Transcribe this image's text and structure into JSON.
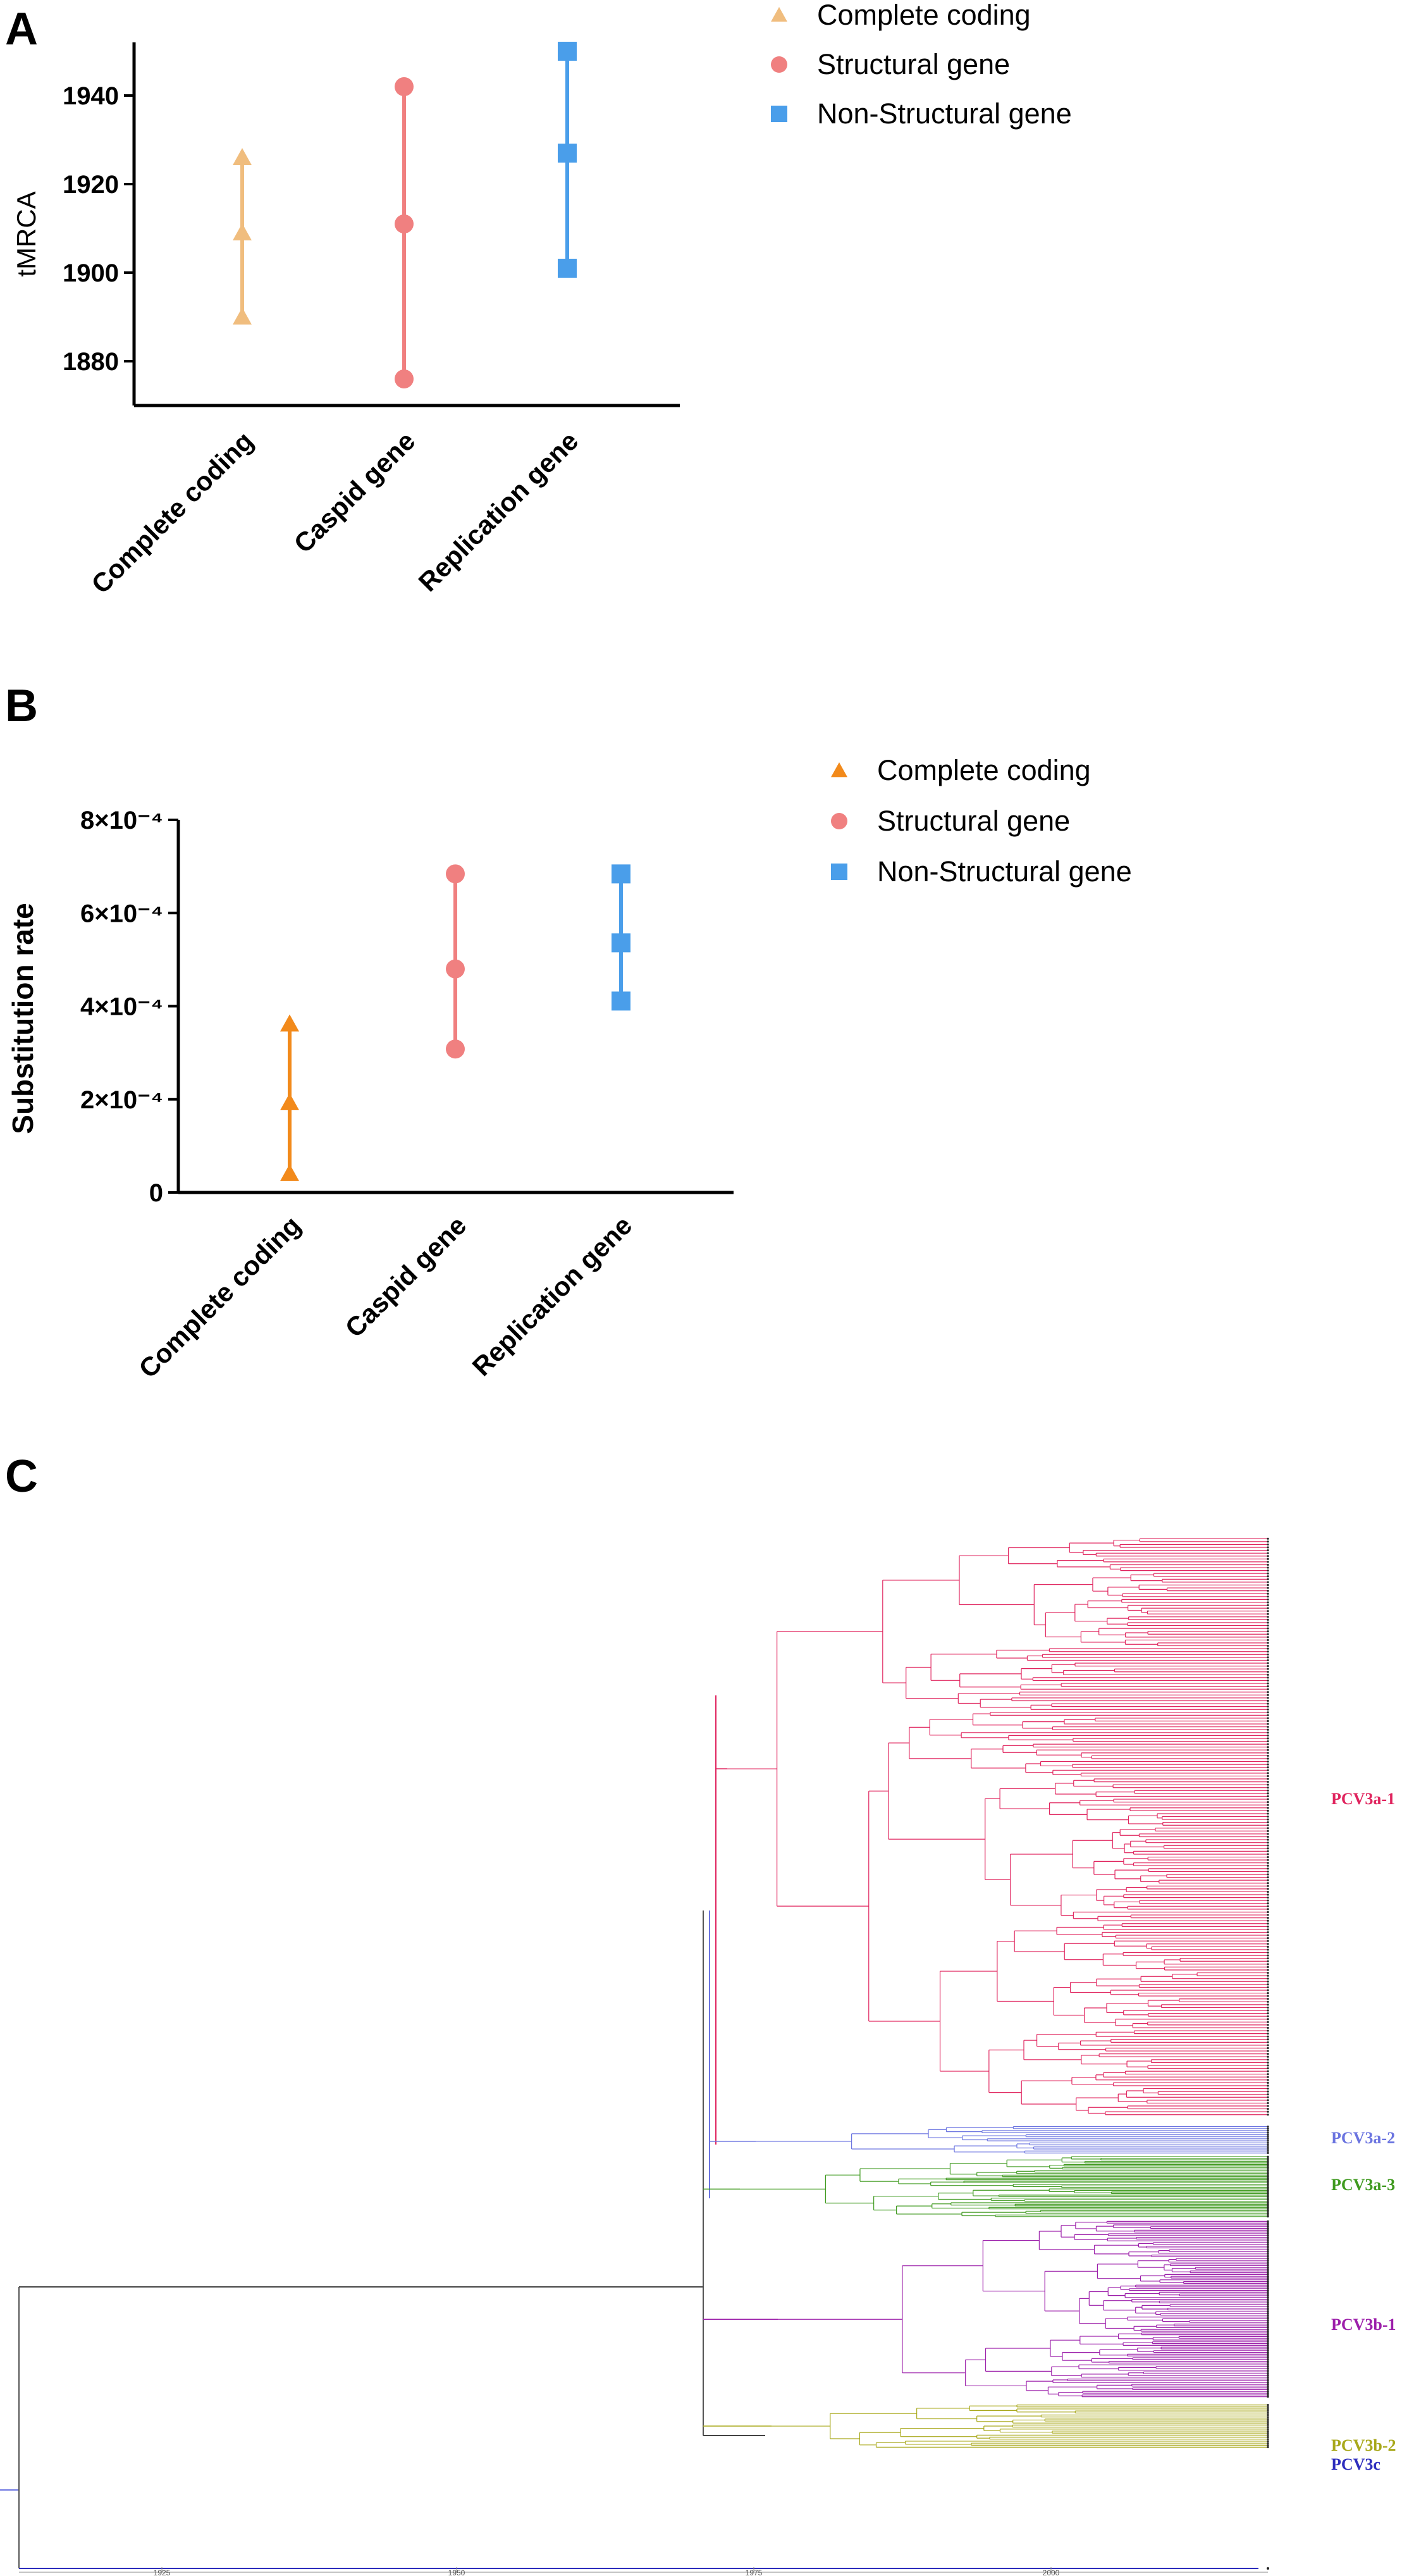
{
  "chart_data": [
    {
      "panel": "A",
      "type": "scatter",
      "ylabel": "tMRCA",
      "ylim": [
        1870,
        1952
      ],
      "yticks": [
        1880,
        1900,
        1920,
        1940
      ],
      "ytick_labels": [
        "1880",
        "1900",
        "1920",
        "1940"
      ],
      "categories": [
        "Complete coding",
        "Caspid gene",
        "Replication gene"
      ],
      "series": [
        {
          "name": "Complete coding",
          "category": "Complete coding",
          "marker": "triangle",
          "color": "#f0bd7e",
          "values": [
            1890,
            1909,
            1926
          ]
        },
        {
          "name": "Structural gene",
          "category": "Caspid gene",
          "marker": "circle",
          "color": "#f08080",
          "values": [
            1876,
            1911,
            1942
          ]
        },
        {
          "name": "Non-Structural gene",
          "category": "Replication gene",
          "marker": "square",
          "color": "#4a9eea",
          "values": [
            1901,
            1927,
            1950
          ]
        }
      ]
    },
    {
      "panel": "B",
      "type": "scatter",
      "ylabel": "Substitution rate",
      "ylim": [
        0,
        0.0008
      ],
      "yticks": [
        0,
        0.0002,
        0.0004,
        0.0006,
        0.0008
      ],
      "ytick_labels": [
        "0",
        "2×10⁻⁴",
        "4×10⁻⁴",
        "6×10⁻⁴",
        "8×10⁻⁴"
      ],
      "categories": [
        "Complete coding",
        "Caspid gene",
        "Replication gene"
      ],
      "series": [
        {
          "name": "Complete coding",
          "category": "Complete coding",
          "marker": "triangle",
          "color": "#f28a1b",
          "values": [
            4.1e-05,
            0.000193,
            0.000362
          ]
        },
        {
          "name": "Structural gene",
          "category": "Caspid gene",
          "marker": "circle",
          "color": "#f08080",
          "values": [
            0.000308,
            0.00048,
            0.000684
          ]
        },
        {
          "name": "Non-Structural gene",
          "category": "Replication gene",
          "marker": "square",
          "color": "#4a9eea",
          "values": [
            0.000411,
            0.000536,
            0.000684
          ]
        }
      ]
    },
    {
      "panel": "C",
      "type": "tree",
      "x_ticks": [
        "1925",
        "1950",
        "1975",
        "2000"
      ],
      "clades": [
        {
          "name": "PCV3a-1",
          "color": "#e0245e",
          "tips": 200
        },
        {
          "name": "PCV3a-2",
          "color": "#6b74e0",
          "tips": 14
        },
        {
          "name": "PCV3a-3",
          "color": "#3f9a1f",
          "tips": 40
        },
        {
          "name": "PCV3b-1",
          "color": "#9c1faa",
          "tips": 100
        },
        {
          "name": "PCV3b-2",
          "color": "#a8a81a",
          "tips": 22
        },
        {
          "name": "PCV3c",
          "color": "#2d2dbd",
          "tips": 1
        }
      ]
    }
  ]
}
